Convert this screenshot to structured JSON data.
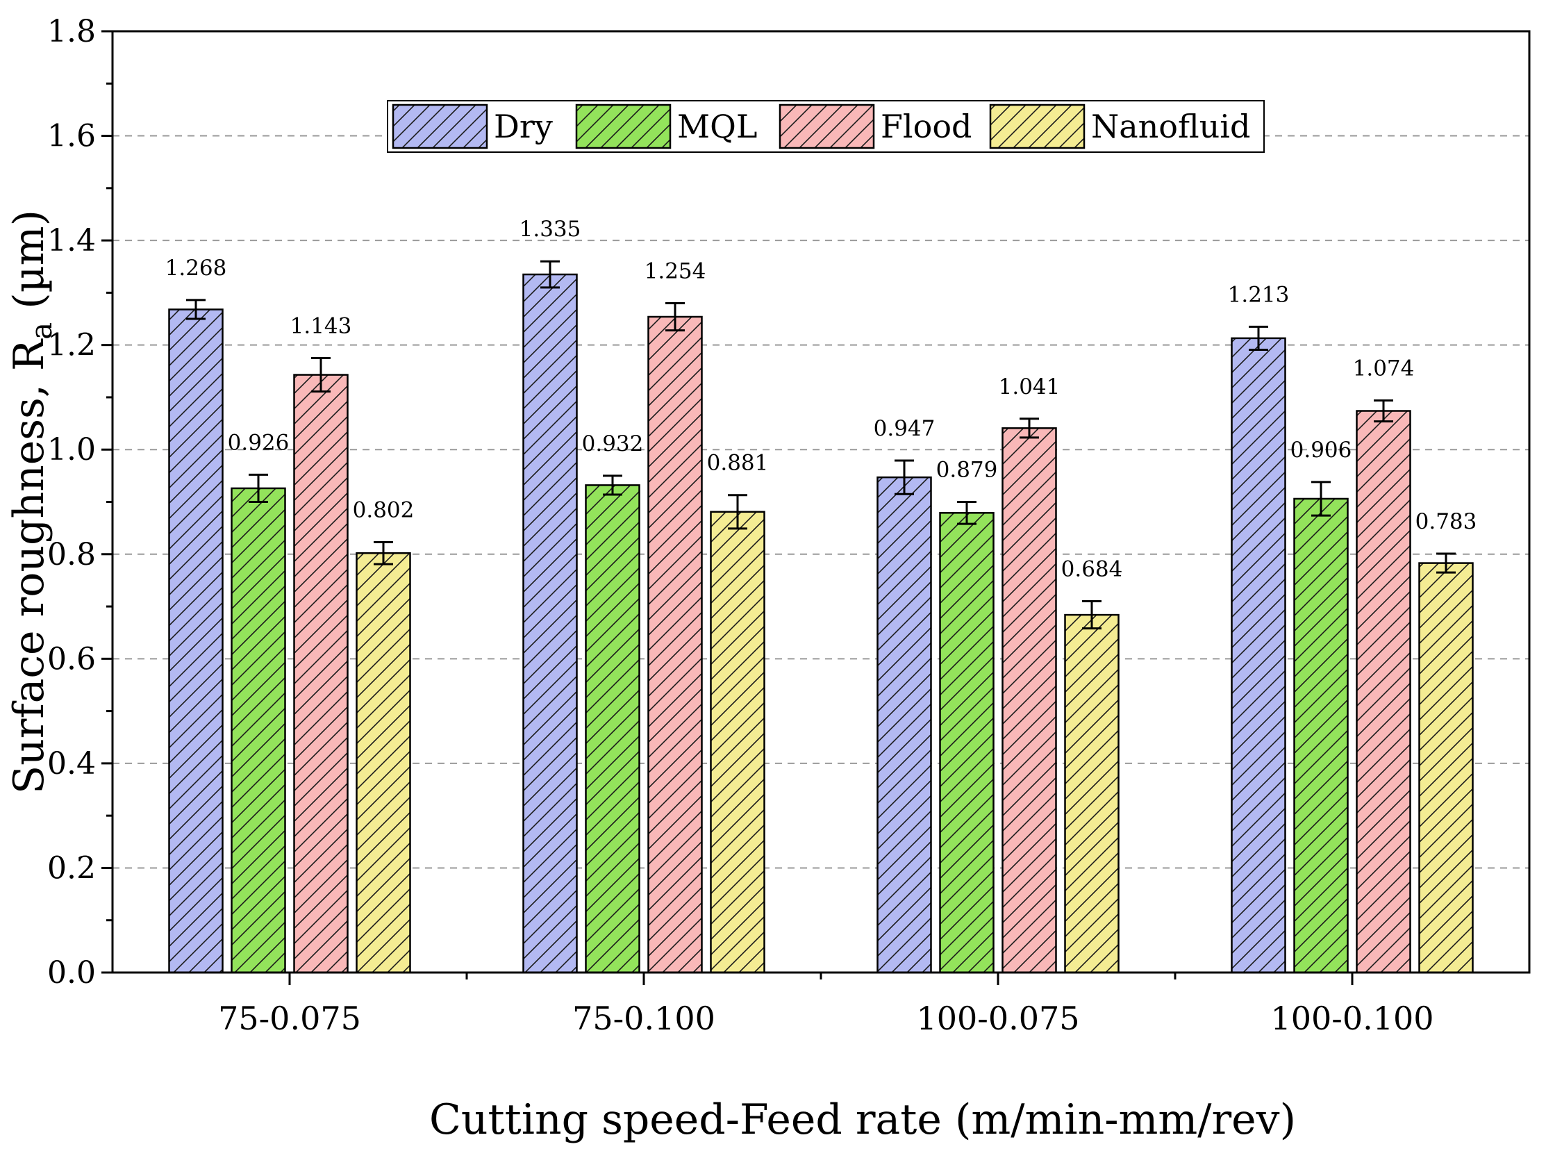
{
  "chart_data": {
    "type": "bar",
    "title": "",
    "xlabel": "Cutting speed-Feed rate (m/min-mm/rev)",
    "ylabel_main": "Surface roughness, R",
    "ylabel_sub": "a",
    "ylabel_unit": " (µm)",
    "ylim": [
      0,
      1.8
    ],
    "yticks": [
      0.0,
      0.2,
      0.4,
      0.6,
      0.8,
      1.0,
      1.2,
      1.4,
      1.6,
      1.8
    ],
    "ytick_labels": [
      "0.0",
      "0.2",
      "0.4",
      "0.6",
      "0.8",
      "1.0",
      "1.2",
      "1.4",
      "1.6",
      "1.8"
    ],
    "grid": true,
    "legend_position": "top-center",
    "categories": [
      "75-0.075",
      "75-0.100",
      "100-0.075",
      "100-0.100"
    ],
    "series": [
      {
        "name": "Dry",
        "color": "#b3b9f2",
        "values": [
          1.268,
          1.335,
          0.947,
          1.213
        ],
        "labels": [
          "1.268",
          "1.335",
          "0.947",
          "1.213"
        ],
        "errors": [
          0.018,
          0.025,
          0.032,
          0.022
        ]
      },
      {
        "name": "MQL",
        "color": "#93e35b",
        "values": [
          0.926,
          0.932,
          0.879,
          0.906
        ],
        "labels": [
          "0.926",
          "0.932",
          "0.879",
          "0.906"
        ],
        "errors": [
          0.026,
          0.018,
          0.021,
          0.032
        ]
      },
      {
        "name": "Flood",
        "color": "#f9b8b8",
        "values": [
          1.143,
          1.254,
          1.041,
          1.074
        ],
        "labels": [
          "1.143",
          "1.254",
          "1.041",
          "1.074"
        ],
        "errors": [
          0.032,
          0.026,
          0.018,
          0.02
        ]
      },
      {
        "name": "Nanofluid",
        "color": "#f4ec93",
        "values": [
          0.802,
          0.881,
          0.684,
          0.783
        ],
        "labels": [
          "0.802",
          "0.881",
          "0.684",
          "0.783"
        ],
        "errors": [
          0.021,
          0.032,
          0.026,
          0.018
        ]
      }
    ]
  }
}
